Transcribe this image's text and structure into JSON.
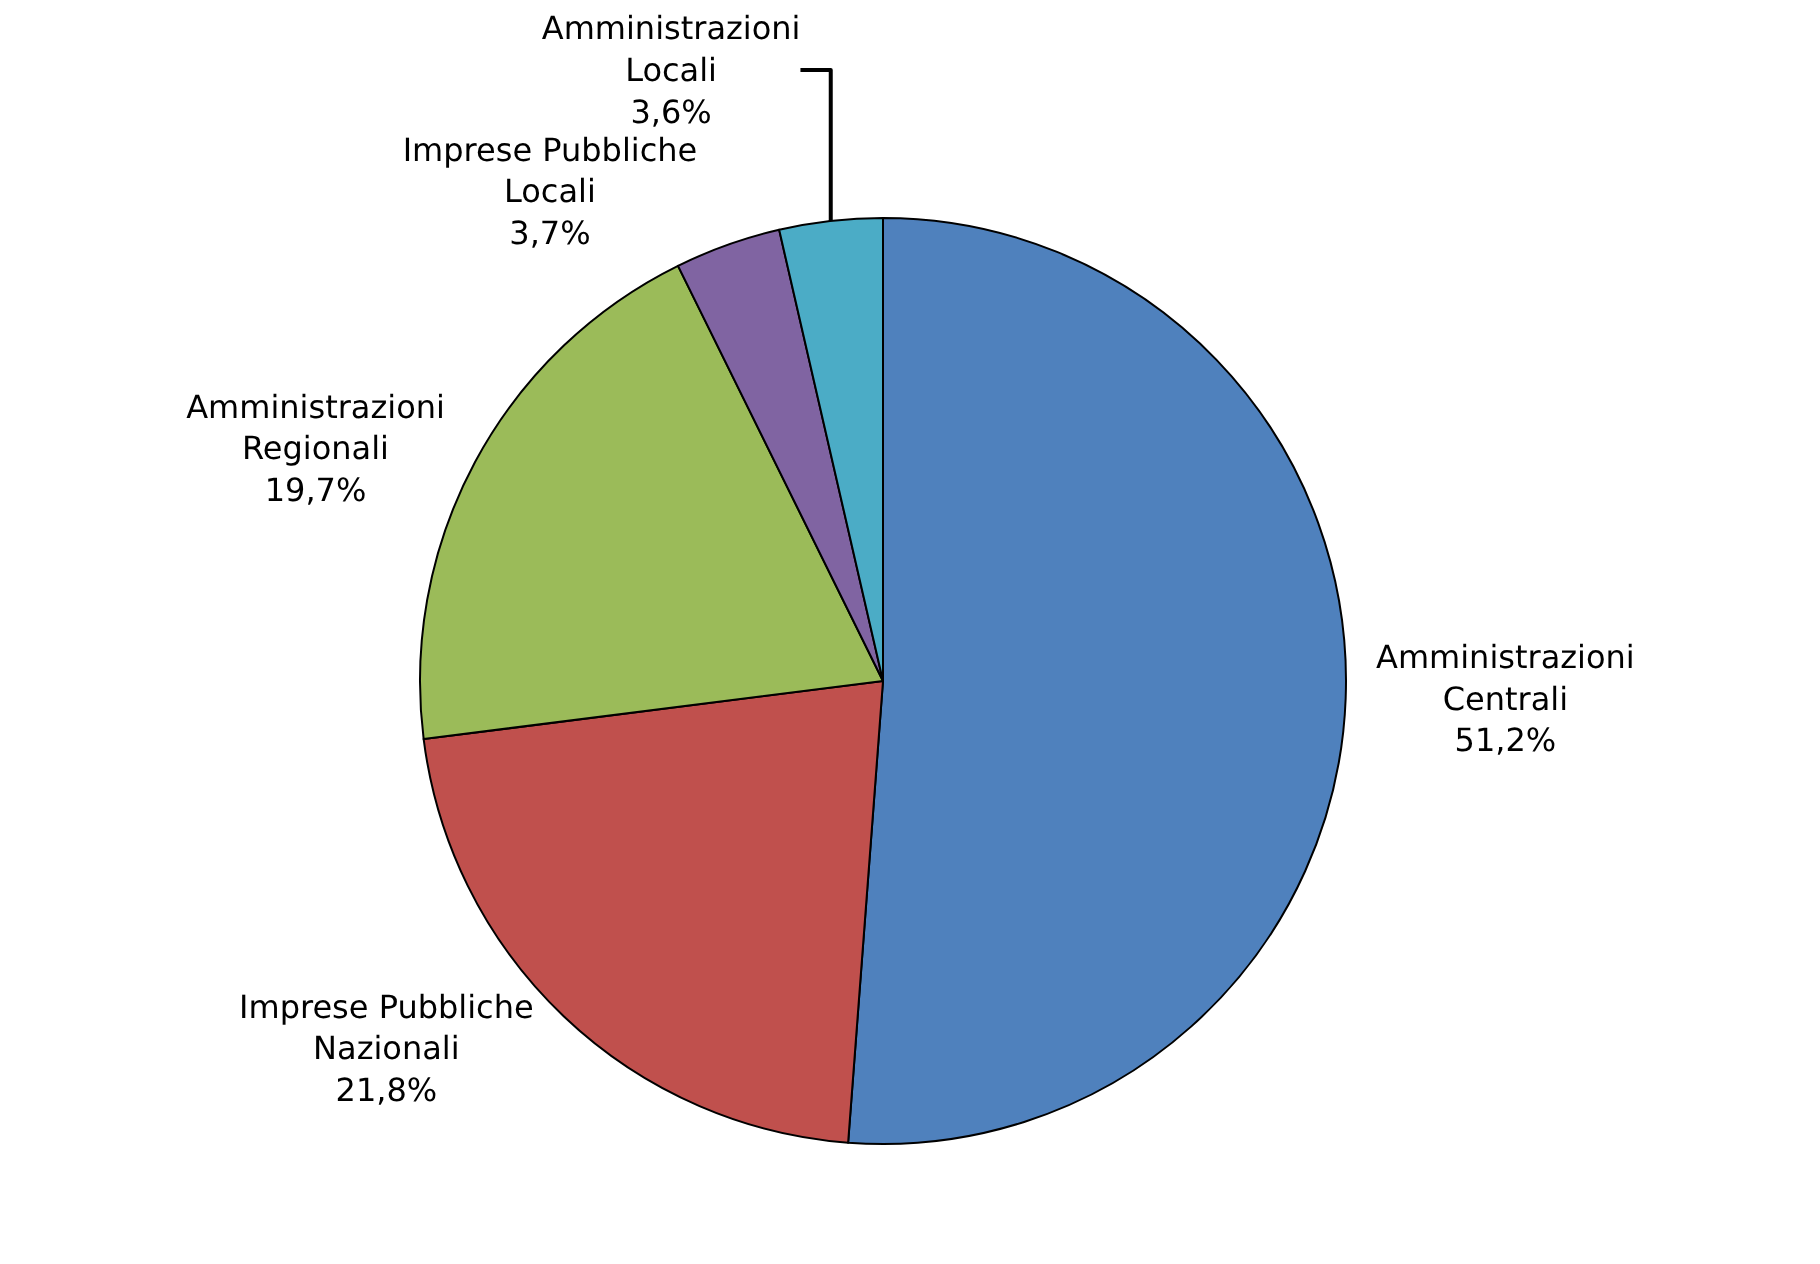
{
  "chart_data": {
    "type": "pie",
    "categories": [
      "Amministrazioni Centrali",
      "Imprese Pubbliche Nazionali",
      "Amministrazioni Regionali",
      "Imprese Pubbliche Locali",
      "Amministrazioni Locali"
    ],
    "values": [
      51.2,
      21.8,
      19.7,
      3.7,
      3.6
    ],
    "value_labels": [
      "51,2%",
      "21,8%",
      "19,7%",
      "3,7%",
      "3,6%"
    ],
    "colors": [
      "#4f81bd",
      "#c0504d",
      "#9bbb59",
      "#8064a2",
      "#4bacc6"
    ],
    "legend": false
  }
}
